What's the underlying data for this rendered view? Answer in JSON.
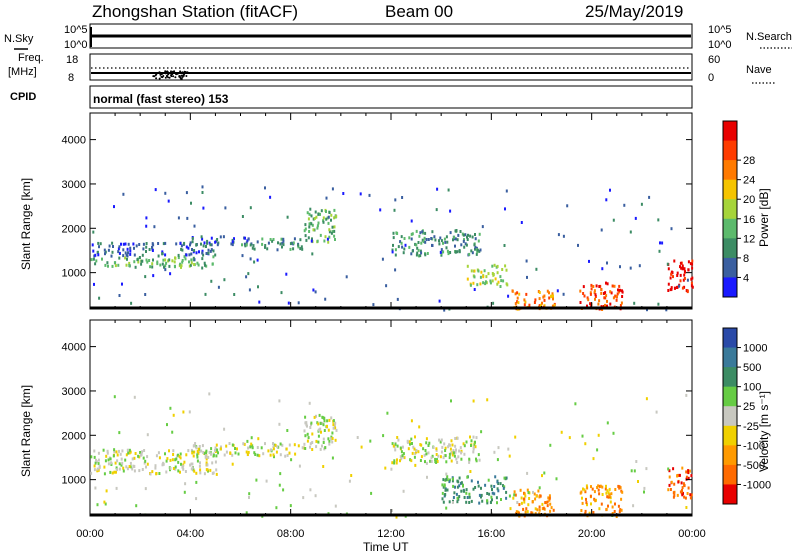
{
  "header": {
    "station": "Zhongshan Station (fitACF)",
    "beam": "Beam 00",
    "date": "25/May/2019"
  },
  "noise_panel": {
    "left_label": "N.Sky",
    "right_label": "N.Search",
    "top_tick": "10^5",
    "bottom_tick": "10^0"
  },
  "freq_panel": {
    "left_label_top": "Freq.",
    "left_label_bottom": "[MHz]",
    "left_ticks": [
      "18",
      "8"
    ],
    "right_ticks": [
      "60",
      "0"
    ],
    "right_label": "Nave"
  },
  "cpid": {
    "label": "CPID",
    "text": "normal (fast stereo) 153"
  },
  "colors": {
    "power_scale": [
      "#1a1aff",
      "#3a5fa0",
      "#3c8c64",
      "#5cba6c",
      "#a6d43a",
      "#f5c400",
      "#ff7a00",
      "#ff3c00",
      "#e80000"
    ],
    "velocity_scale": [
      "#2a4aa8",
      "#3a7a9a",
      "#3c8c64",
      "#66cc44",
      "#c8c8c0",
      "#f0d000",
      "#ff9a00",
      "#ff6a00",
      "#e80000"
    ]
  },
  "chart_data": [
    {
      "type": "heatmap",
      "title": "Power",
      "xlabel": "",
      "ylabel": "Slant Range [km]",
      "x_ticks": [
        "00:00",
        "04:00",
        "08:00",
        "12:00",
        "16:00",
        "20:00",
        "00:00"
      ],
      "y_ticks": [
        "1000",
        "2000",
        "3000",
        "4000"
      ],
      "xlim_hours": [
        0,
        24
      ],
      "ylim_km": [
        180,
        4600
      ],
      "colorbar": {
        "label": "Power [dB]",
        "ticks": [
          "4",
          "8",
          "12",
          "16",
          "20",
          "24",
          "28"
        ]
      },
      "echo_regions": [
        {
          "t0": 0.0,
          "t1": 5.0,
          "r0": 1150,
          "r1": 1400,
          "level": 3
        },
        {
          "t0": 0.0,
          "t1": 5.0,
          "r0": 1400,
          "r1": 1700,
          "level": 1
        },
        {
          "t0": 4.0,
          "t1": 6.5,
          "r0": 1650,
          "r1": 1850,
          "level": 1
        },
        {
          "t0": 6.0,
          "t1": 8.5,
          "r0": 1550,
          "r1": 1800,
          "level": 2
        },
        {
          "t0": 8.5,
          "t1": 9.8,
          "r0": 1700,
          "r1": 2500,
          "level": 3
        },
        {
          "t0": 12.0,
          "t1": 15.5,
          "r0": 1400,
          "r1": 2000,
          "level": 2
        },
        {
          "t0": 15.0,
          "t1": 16.6,
          "r0": 700,
          "r1": 1200,
          "level": 4
        },
        {
          "t0": 16.8,
          "t1": 18.5,
          "r0": 200,
          "r1": 650,
          "level": 6
        },
        {
          "t0": 19.5,
          "t1": 21.2,
          "r0": 200,
          "r1": 800,
          "level": 7
        },
        {
          "t0": 23.0,
          "t1": 24.0,
          "r0": 600,
          "r1": 1300,
          "level": 8
        }
      ]
    },
    {
      "type": "heatmap",
      "title": "Velocity",
      "xlabel": "Time UT",
      "ylabel": "Slant Range [km]",
      "x_ticks": [
        "00:00",
        "04:00",
        "08:00",
        "12:00",
        "16:00",
        "20:00",
        "00:00"
      ],
      "y_ticks": [
        "1000",
        "2000",
        "3000",
        "4000"
      ],
      "xlim_hours": [
        0,
        24
      ],
      "ylim_km": [
        180,
        4600
      ],
      "colorbar": {
        "label": "Velocity [m s⁻¹]",
        "ticks": [
          "1000",
          "500",
          "100",
          "25",
          "-25",
          "-100",
          "-500",
          "-1000"
        ]
      },
      "echo_regions": [
        {
          "t0": 0.0,
          "t1": 5.0,
          "r0": 1150,
          "r1": 1700,
          "level": 4
        },
        {
          "t0": 4.0,
          "t1": 8.5,
          "r0": 1550,
          "r1": 1850,
          "level": 4
        },
        {
          "t0": 8.5,
          "t1": 9.8,
          "r0": 1700,
          "r1": 2500,
          "level": 4
        },
        {
          "t0": 12.0,
          "t1": 15.5,
          "r0": 1400,
          "r1": 2000,
          "level": 4
        },
        {
          "t0": 14.0,
          "t1": 16.6,
          "r0": 500,
          "r1": 1100,
          "level": 2
        },
        {
          "t0": 16.8,
          "t1": 18.5,
          "r0": 200,
          "r1": 800,
          "level": 6
        },
        {
          "t0": 19.5,
          "t1": 21.2,
          "r0": 200,
          "r1": 900,
          "level": 6
        },
        {
          "t0": 23.0,
          "t1": 24.0,
          "r0": 600,
          "r1": 1300,
          "level": 7
        }
      ]
    }
  ]
}
